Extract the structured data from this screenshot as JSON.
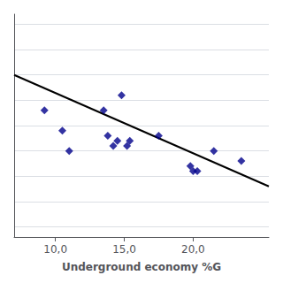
{
  "chart_data": {
    "type": "scatter",
    "xlabel": "Underground economy %G",
    "series": [
      {
        "type": "scatter",
        "marker": "diamond",
        "color": "#00008B",
        "x": [
          9.2,
          10.5,
          11.0,
          13.5,
          13.8,
          14.2,
          14.5,
          14.8,
          15.2,
          15.4,
          17.5,
          19.8,
          20.0,
          20.3,
          21.5,
          23.5
        ],
        "values": [
          6.3,
          5.9,
          5.5,
          6.3,
          5.8,
          5.6,
          5.7,
          6.6,
          5.6,
          5.7,
          5.8,
          5.2,
          5.1,
          5.1,
          5.5,
          5.3
        ]
      },
      {
        "type": "line",
        "color": "#000000",
        "x": [
          7.0,
          25.5
        ],
        "values": [
          7.0,
          4.8
        ]
      }
    ],
    "xlim": [
      7.0,
      25.5
    ],
    "ylim": [
      3.8,
      8.2
    ],
    "xticks": [
      {
        "value": 10.0,
        "label": "10,0"
      },
      {
        "value": 15.0,
        "label": "15,0"
      },
      {
        "value": 20.0,
        "label": "20,0"
      }
    ],
    "yticks": [
      4.0,
      4.5,
      5.0,
      5.5,
      6.0,
      6.5,
      7.0,
      7.5,
      8.0
    ],
    "tick_labels": "x",
    "grid": "y",
    "background_color": "#ffffff"
  }
}
